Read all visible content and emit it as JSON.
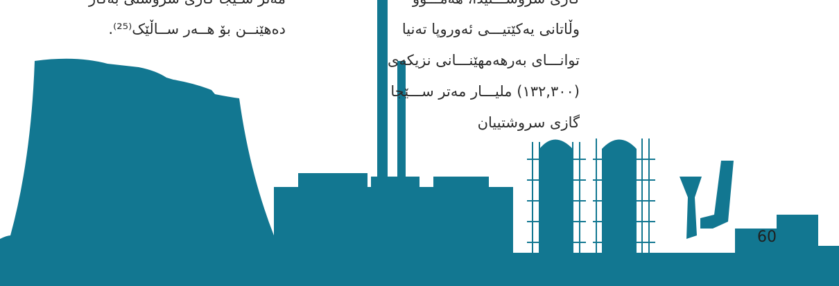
{
  "colors": {
    "silhouette": "#127791",
    "text": "#2b2b2b"
  },
  "left_column": {
    "lines": [
      "مەتر سـێجا گازی سروشتی بەکار",
      "دەهێنــن بۆ هــەر ســاڵێک⁽²⁵⁾."
    ]
  },
  "right_column": {
    "lines": [
      "گازی سروشـــتیدا، هەمـــوو",
      "وڵاتانی یەکێتیـــی ئەوروپا تەنیا",
      "توانـــای بەرهەمهێنـــانی نزیکەی",
      "(١٣٢,٣٠٠) مليـــار مەتر ســـێجا",
      "گازی سروشتییان"
    ]
  },
  "page_number": "60"
}
